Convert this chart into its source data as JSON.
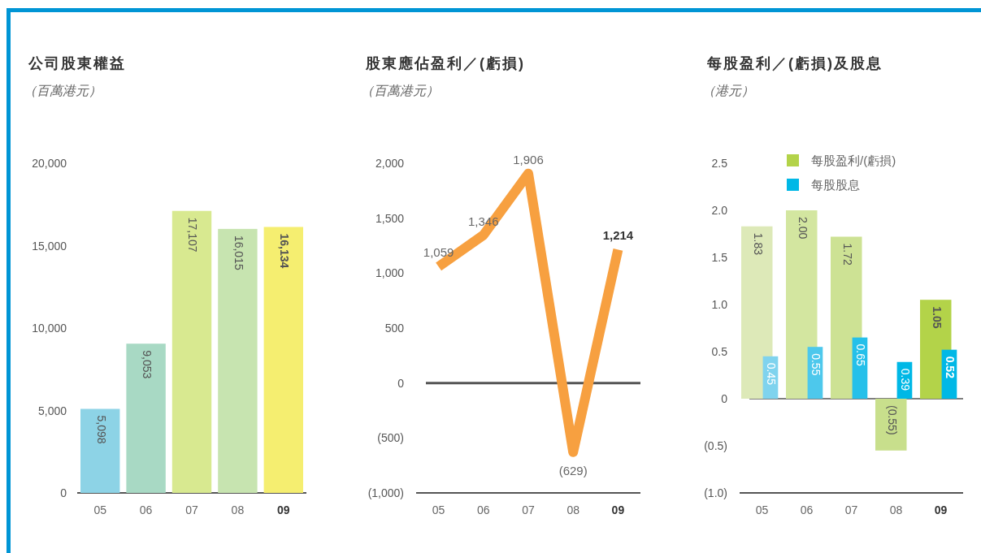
{
  "chart_data": [
    {
      "type": "bar",
      "title": "公司股東權益",
      "subtitle": "（百萬港元）",
      "categories": [
        "05",
        "06",
        "07",
        "08",
        "09"
      ],
      "values": [
        5098,
        9053,
        17107,
        16015,
        16134
      ],
      "colors": [
        "#8dd3e6",
        "#a8d9c4",
        "#d8e990",
        "#c7e4b0",
        "#f5ee70"
      ],
      "value_labels": [
        "5,098",
        "9,053",
        "17,107",
        "16,015",
        "16,134"
      ],
      "ylim": [
        0,
        20000
      ],
      "yticks": [
        0,
        {
          "value": 5000,
          "label": "5,000"
        },
        {
          "value": 10000,
          "label": "10,000"
        },
        {
          "value": 15000,
          "label": "15,000"
        },
        {
          "value": 20000,
          "label": "20,000"
        }
      ]
    },
    {
      "type": "line",
      "title": "股東應佔盈利／(虧損)",
      "subtitle": "（百萬港元）",
      "categories": [
        "05",
        "06",
        "07",
        "08",
        "09"
      ],
      "values": [
        1059,
        1346,
        1906,
        -629,
        1214
      ],
      "color": "#f7a040",
      "value_labels": [
        "1,059",
        "1,346",
        "1,906",
        "(629)",
        "1,214"
      ],
      "ylim": [
        -1000,
        2000
      ],
      "yticks": [
        {
          "value": -1000,
          "label": "(1,000)"
        },
        {
          "value": -500,
          "label": "(500)"
        },
        0,
        500,
        {
          "value": 1000,
          "label": "1,000"
        },
        {
          "value": 1500,
          "label": "1,500"
        },
        {
          "value": 2000,
          "label": "2,000"
        }
      ],
      "ref_lines": [
        {
          "axis": "y",
          "value": 0,
          "color": "#555555"
        }
      ]
    },
    {
      "type": "bar",
      "title": "每股盈利／(虧損)及股息",
      "subtitle": "（港元）",
      "categories": [
        "05",
        "06",
        "07",
        "08",
        "09"
      ],
      "series": [
        {
          "name": "每股盈利/(虧損)",
          "color": "#b3d349",
          "colors": [
            "#dde9b8",
            "#d3e6a0",
            "#cde294",
            "#c8df8c",
            "#b3d349"
          ],
          "values": [
            1.83,
            2.0,
            1.72,
            -0.55,
            1.05
          ],
          "value_labels": [
            "1.83",
            "2.00",
            "1.72",
            "(0.55)",
            "1.05"
          ]
        },
        {
          "name": "每股股息",
          "color": "#00b8e6",
          "colors": [
            "#7fd3ee",
            "#4dc8ec",
            "#25c0ea",
            "#00b8e6",
            "#00b8e6"
          ],
          "values": [
            0.45,
            0.55,
            0.65,
            0.39,
            0.52
          ],
          "value_labels": [
            "0.45",
            "0.55",
            "0.65",
            "0.39",
            "0.52"
          ]
        }
      ],
      "legend": "top",
      "ylim": [
        -1.0,
        2.5
      ],
      "yticks": [
        {
          "value": -1.0,
          "label": "(1.0)"
        },
        {
          "value": -0.5,
          "label": "(0.5)"
        },
        0,
        0.5,
        {
          "value": 1.0,
          "label": "1.0"
        },
        1.5,
        {
          "value": 2.0,
          "label": "2.0"
        },
        2.5
      ],
      "ref_lines": [
        {
          "axis": "y",
          "value": 0,
          "color": "#555555"
        }
      ]
    }
  ]
}
